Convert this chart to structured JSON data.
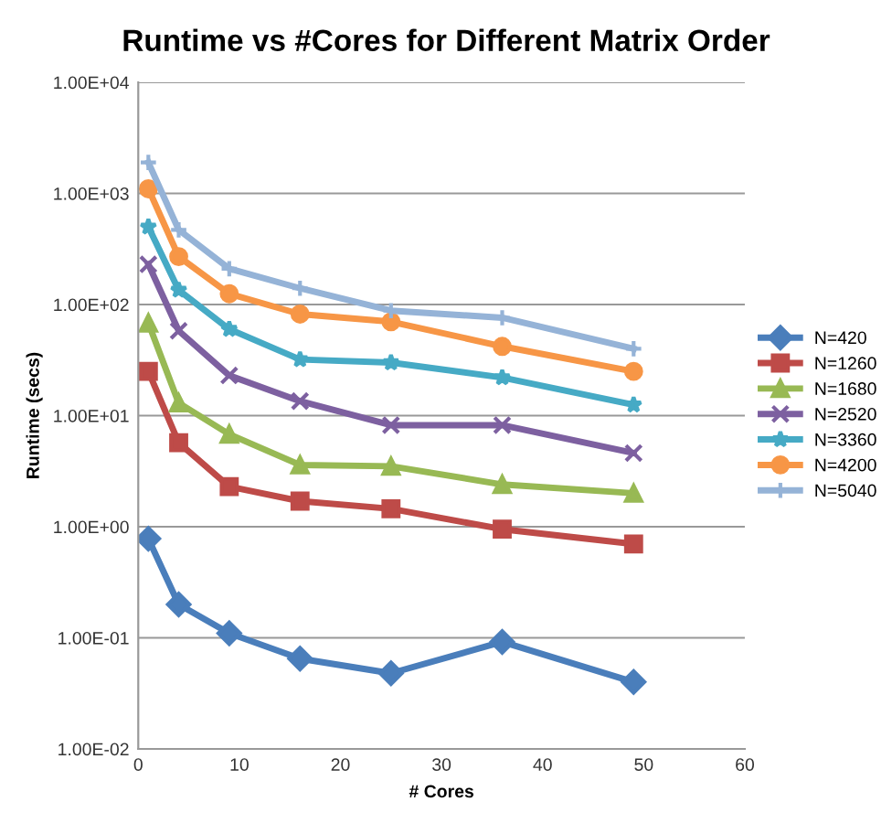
{
  "chart_data": {
    "type": "line",
    "title": "Runtime vs #Cores for Different Matrix Order",
    "xlabel": "# Cores",
    "ylabel": "Runtime (secs)",
    "x": [
      1,
      4,
      9,
      16,
      25,
      36,
      49
    ],
    "series": [
      {
        "name": "N=420",
        "color": "#4a7ebb",
        "marker": "diamond",
        "values": [
          0.78,
          0.2,
          0.11,
          0.065,
          0.048,
          0.092,
          0.04
        ]
      },
      {
        "name": "N=1260",
        "color": "#be4b48",
        "marker": "square",
        "values": [
          25,
          5.7,
          2.3,
          1.7,
          1.45,
          0.95,
          0.7
        ]
      },
      {
        "name": "N=1680",
        "color": "#98b954",
        "marker": "triangle",
        "values": [
          68,
          13,
          6.8,
          3.6,
          3.5,
          2.4,
          2.0
        ]
      },
      {
        "name": "N=2520",
        "color": "#7d60a0",
        "marker": "cross",
        "values": [
          230,
          58,
          23,
          13.5,
          8.2,
          8.2,
          4.6
        ]
      },
      {
        "name": "N=3360",
        "color": "#46aac5",
        "marker": "star",
        "values": [
          500,
          135,
          60,
          32,
          30,
          22,
          12.5
        ]
      },
      {
        "name": "N=4200",
        "color": "#f79646",
        "marker": "circle",
        "values": [
          1100,
          270,
          125,
          82,
          70,
          42,
          25
        ]
      },
      {
        "name": "N=5040",
        "color": "#95b3d7",
        "marker": "plus",
        "values": [
          1900,
          470,
          210,
          140,
          88,
          76,
          40
        ]
      }
    ],
    "log": "y",
    "grid": "y",
    "legend": "right",
    "xlim": [
      0,
      60
    ],
    "xticks": [
      0,
      10,
      20,
      30,
      40,
      50,
      60
    ],
    "ylim": [
      0.01,
      10000
    ],
    "yticks": [
      {
        "value": 0.01,
        "label": "1.00E-02"
      },
      {
        "value": 0.1,
        "label": "1.00E-01"
      },
      {
        "value": 1,
        "label": "1.00E+00"
      },
      {
        "value": 10,
        "label": "1.00E+01"
      },
      {
        "value": 100,
        "label": "1.00E+02"
      },
      {
        "value": 1000,
        "label": "1.00E+03"
      },
      {
        "value": 10000,
        "label": "1.00E+04"
      }
    ]
  }
}
